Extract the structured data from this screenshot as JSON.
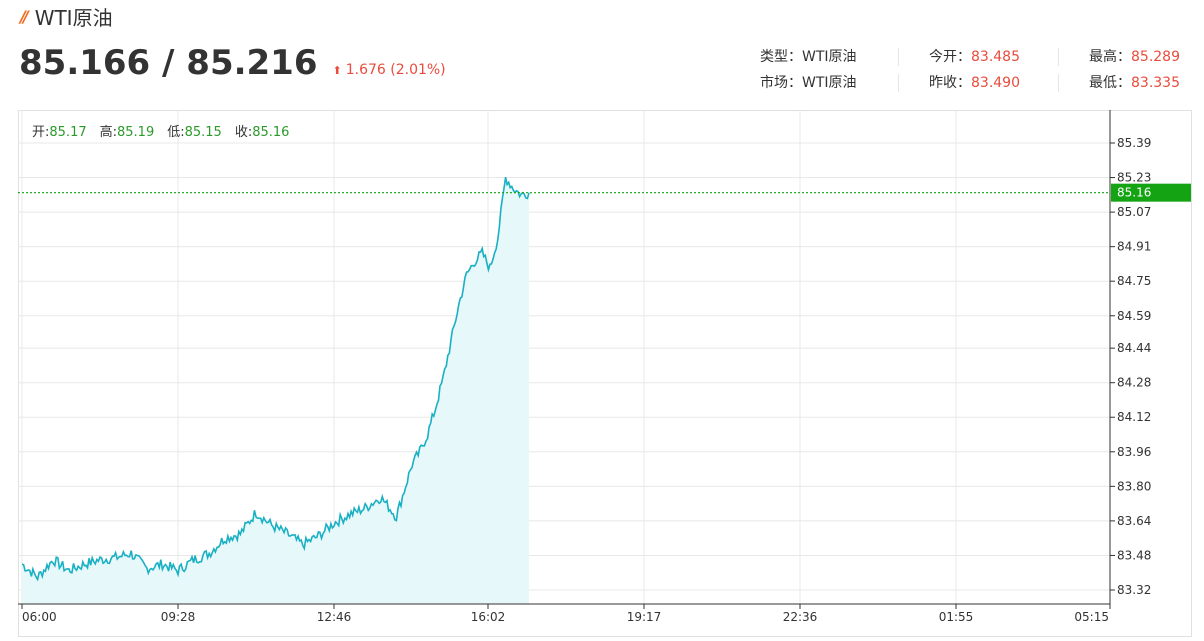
{
  "header": {
    "title": "WTI原油",
    "price": "85.166 / 85.216",
    "change_arrow": "⬆",
    "change": "1.676 (2.01%)"
  },
  "info": {
    "type_label": "类型：",
    "type_value": "WTI原油",
    "market_label": "市场：",
    "market_value": "WTI原油",
    "open_label": "今开：",
    "open_value": "83.485",
    "prev_close_label": "昨收：",
    "prev_close_value": "83.490",
    "high_label": "最高：",
    "high_value": "85.289",
    "low_label": "最低：",
    "low_value": "83.335"
  },
  "ohlc": {
    "open_label": "开:",
    "open_value": "85.17",
    "high_label": "高:",
    "high_value": "85.19",
    "low_label": "低:",
    "low_value": "85.15",
    "close_label": "收:",
    "close_value": "85.16"
  },
  "colors": {
    "line": "#1ab0c4",
    "area": "#e6f8fa",
    "grid": "#e8e8e8",
    "current": "#13a313",
    "up": "#e84c3d"
  },
  "chart_data": {
    "type": "area",
    "x_ticks": [
      "06:00",
      "09:28",
      "12:46",
      "16:02",
      "19:17",
      "22:36",
      "01:55",
      "05:15"
    ],
    "y_ticks": [
      "85.39",
      "85.23",
      "85.07",
      "84.91",
      "84.75",
      "84.59",
      "84.44",
      "84.28",
      "84.12",
      "83.96",
      "83.80",
      "83.64",
      "83.48",
      "83.32"
    ],
    "ylim": [
      83.32,
      85.39
    ],
    "current_value": "85.16",
    "series": [
      {
        "x": [
          "06:00",
          "06:20",
          "06:40",
          "07:00",
          "07:20",
          "07:40",
          "08:00",
          "08:20",
          "08:40",
          "09:00",
          "09:20",
          "09:40",
          "10:00",
          "10:20",
          "10:40",
          "11:00",
          "11:20",
          "11:40",
          "12:00",
          "12:20",
          "12:40",
          "13:00",
          "13:20",
          "13:40",
          "14:00",
          "14:20",
          "14:30",
          "14:40",
          "14:50",
          "15:00",
          "15:10",
          "15:20",
          "15:30",
          "15:40",
          "15:50",
          "16:00",
          "16:10",
          "16:20",
          "16:30",
          "16:40",
          "16:50"
        ],
        "y": [
          83.44,
          83.38,
          83.46,
          83.41,
          83.44,
          83.46,
          83.47,
          83.49,
          83.42,
          83.44,
          83.41,
          83.46,
          83.49,
          83.56,
          83.58,
          83.68,
          83.62,
          83.58,
          83.53,
          83.57,
          83.63,
          83.67,
          83.7,
          83.75,
          83.66,
          83.9,
          83.96,
          84.04,
          84.16,
          84.3,
          84.47,
          84.64,
          84.78,
          84.84,
          84.88,
          84.81,
          84.95,
          85.23,
          85.18,
          85.15,
          85.16
        ]
      }
    ]
  }
}
